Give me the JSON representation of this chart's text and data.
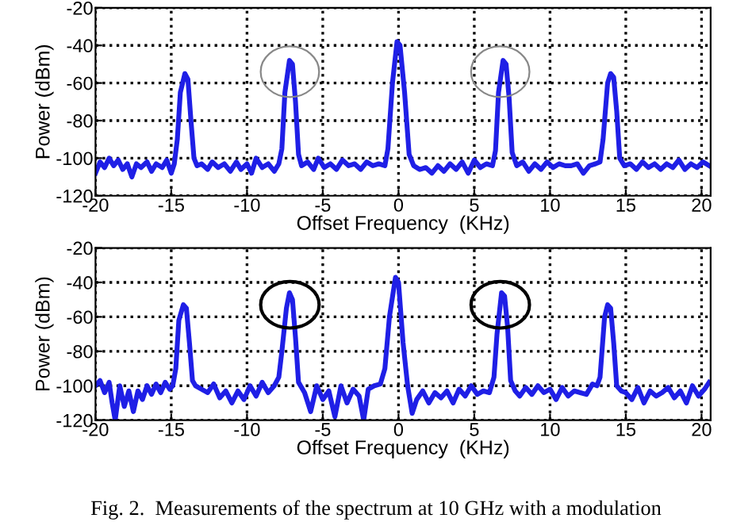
{
  "chart_data": [
    {
      "type": "line",
      "xlabel": "Offset Frequency  (KHz)",
      "ylabel": "Power (dBm)",
      "xlim": [
        -20,
        20.6
      ],
      "ylim": [
        -120,
        -20
      ],
      "xticks": [
        -20,
        -15,
        -10,
        -5,
        0,
        5,
        10,
        15,
        20
      ],
      "yticks": [
        -120,
        -100,
        -80,
        -60,
        -40,
        -20
      ],
      "grid": true,
      "line_style": "solid",
      "marker": "none",
      "series": [
        {
          "color": "#1f1fe6",
          "x": [
            -20,
            -19.7,
            -19.4,
            -19.1,
            -18.8,
            -18.5,
            -18.2,
            -17.9,
            -17.6,
            -17.3,
            -17.0,
            -16.6,
            -16.3,
            -16.0,
            -15.6,
            -15.3,
            -15.0,
            -14.8,
            -14.6,
            -14.4,
            -14.1,
            -13.9,
            -13.7,
            -13.5,
            -13.3,
            -13.0,
            -12.6,
            -12.3,
            -11.9,
            -11.5,
            -11.1,
            -10.7,
            -10.4,
            -10.0,
            -9.7,
            -9.4,
            -9.0,
            -8.6,
            -8.2,
            -7.9,
            -7.7,
            -7.5,
            -7.2,
            -7.0,
            -6.8,
            -6.6,
            -6.4,
            -6.0,
            -5.6,
            -5.3,
            -4.9,
            -4.5,
            -4.1,
            -3.7,
            -3.3,
            -2.9,
            -2.5,
            -2.1,
            -1.7,
            -1.3,
            -0.9,
            -0.7,
            -0.4,
            -0.1,
            0.1,
            0.4,
            0.7,
            1.0,
            1.4,
            1.8,
            2.2,
            2.6,
            3.0,
            3.4,
            3.8,
            4.2,
            4.6,
            5.0,
            5.4,
            5.8,
            6.2,
            6.4,
            6.6,
            6.9,
            7.1,
            7.3,
            7.5,
            7.8,
            8.2,
            8.6,
            9.0,
            9.4,
            9.8,
            10.2,
            10.6,
            11.0,
            11.4,
            11.8,
            12.2,
            12.6,
            13.0,
            13.3,
            13.5,
            13.8,
            14.0,
            14.2,
            14.4,
            14.6,
            14.9,
            15.3,
            15.7,
            16.1,
            16.5,
            16.9,
            17.3,
            17.7,
            18.1,
            18.5,
            18.9,
            19.3,
            19.7,
            20.1,
            20.5
          ],
          "values": [
            -108,
            -102,
            -105,
            -100,
            -104,
            -101,
            -106,
            -103,
            -110,
            -103,
            -105,
            -102,
            -107,
            -103,
            -105,
            -101,
            -108,
            -103,
            -90,
            -65,
            -55,
            -58,
            -80,
            -100,
            -104,
            -103,
            -106,
            -102,
            -105,
            -103,
            -107,
            -102,
            -106,
            -103,
            -108,
            -100,
            -105,
            -103,
            -107,
            -103,
            -95,
            -65,
            -48,
            -50,
            -70,
            -98,
            -104,
            -102,
            -106,
            -100,
            -105,
            -103,
            -106,
            -101,
            -104,
            -103,
            -106,
            -102,
            -104,
            -103,
            -104,
            -95,
            -60,
            -38,
            -40,
            -65,
            -98,
            -104,
            -106,
            -105,
            -108,
            -104,
            -107,
            -103,
            -106,
            -102,
            -108,
            -101,
            -105,
            -103,
            -104,
            -96,
            -65,
            -48,
            -50,
            -68,
            -97,
            -104,
            -102,
            -107,
            -103,
            -106,
            -102,
            -105,
            -103,
            -104,
            -104,
            -103,
            -108,
            -104,
            -103,
            -102,
            -90,
            -60,
            -55,
            -57,
            -75,
            -100,
            -104,
            -103,
            -106,
            -102,
            -105,
            -103,
            -106,
            -103,
            -105,
            -101,
            -106,
            -103,
            -105,
            -102,
            -104
          ]
        }
      ]
    },
    {
      "type": "line",
      "xlabel": "Offset Frequency  (KHz)",
      "ylabel": "Power (dBm)",
      "xlim": [
        -20,
        20.6
      ],
      "ylim": [
        -120,
        -20
      ],
      "xticks": [
        -20,
        -15,
        -10,
        -5,
        0,
        5,
        10,
        15,
        20
      ],
      "yticks": [
        -120,
        -100,
        -80,
        -60,
        -40,
        -20
      ],
      "grid": true,
      "line_style": "solid",
      "marker": "none",
      "annotations": [
        "Fig. 2.  Measurements of the spectrum at 10 GHz with a modulation"
      ],
      "series": [
        {
          "color": "#1f1fe6",
          "x": [
            -20,
            -19.7,
            -19.4,
            -19.1,
            -18.9,
            -18.7,
            -18.4,
            -18.1,
            -17.8,
            -17.5,
            -17.2,
            -16.9,
            -16.6,
            -16.3,
            -16.0,
            -15.7,
            -15.4,
            -15.1,
            -14.9,
            -14.7,
            -14.5,
            -14.2,
            -14.0,
            -13.8,
            -13.6,
            -13.4,
            -13.0,
            -12.6,
            -12.2,
            -11.8,
            -11.4,
            -11.0,
            -10.6,
            -10.2,
            -9.8,
            -9.4,
            -9.0,
            -8.6,
            -8.2,
            -7.9,
            -7.7,
            -7.4,
            -7.2,
            -7.0,
            -6.8,
            -6.6,
            -6.2,
            -5.8,
            -5.4,
            -5.0,
            -4.6,
            -4.2,
            -3.8,
            -3.4,
            -3.0,
            -2.6,
            -2.3,
            -2.0,
            -1.6,
            -1.2,
            -0.9,
            -0.6,
            -0.2,
            0.0,
            0.3,
            0.6,
            0.9,
            1.2,
            1.6,
            2.0,
            2.4,
            2.8,
            3.2,
            3.6,
            4.0,
            4.4,
            4.8,
            5.2,
            5.6,
            6.0,
            6.3,
            6.5,
            6.8,
            7.0,
            7.2,
            7.4,
            7.7,
            8.0,
            8.4,
            8.8,
            9.2,
            9.6,
            10.0,
            10.4,
            10.8,
            11.2,
            11.6,
            12.0,
            12.4,
            12.8,
            13.1,
            13.3,
            13.6,
            13.8,
            14.0,
            14.2,
            14.4,
            14.7,
            15.0,
            15.4,
            15.8,
            16.2,
            16.6,
            17.0,
            17.4,
            17.8,
            18.2,
            18.6,
            19.0,
            19.4,
            19.8,
            20.2,
            20.5
          ],
          "values": [
            -100,
            -97,
            -104,
            -98,
            -110,
            -120,
            -100,
            -112,
            -103,
            -115,
            -103,
            -108,
            -100,
            -105,
            -99,
            -104,
            -98,
            -102,
            -100,
            -90,
            -62,
            -53,
            -55,
            -75,
            -97,
            -100,
            -102,
            -104,
            -99,
            -107,
            -103,
            -110,
            -103,
            -108,
            -100,
            -106,
            -98,
            -104,
            -100,
            -95,
            -80,
            -55,
            -46,
            -50,
            -72,
            -98,
            -104,
            -115,
            -100,
            -108,
            -103,
            -118,
            -100,
            -110,
            -102,
            -106,
            -120,
            -102,
            -100,
            -99,
            -90,
            -60,
            -37,
            -40,
            -75,
            -100,
            -116,
            -108,
            -103,
            -110,
            -104,
            -107,
            -103,
            -110,
            -102,
            -106,
            -100,
            -105,
            -103,
            -104,
            -95,
            -70,
            -46,
            -48,
            -66,
            -97,
            -103,
            -106,
            -101,
            -105,
            -100,
            -104,
            -102,
            -108,
            -101,
            -106,
            -103,
            -104,
            -105,
            -99,
            -100,
            -95,
            -60,
            -53,
            -55,
            -75,
            -100,
            -103,
            -104,
            -108,
            -101,
            -110,
            -103,
            -106,
            -104,
            -101,
            -107,
            -103,
            -110,
            -100,
            -106,
            -102,
            -98
          ]
        }
      ]
    }
  ]
}
